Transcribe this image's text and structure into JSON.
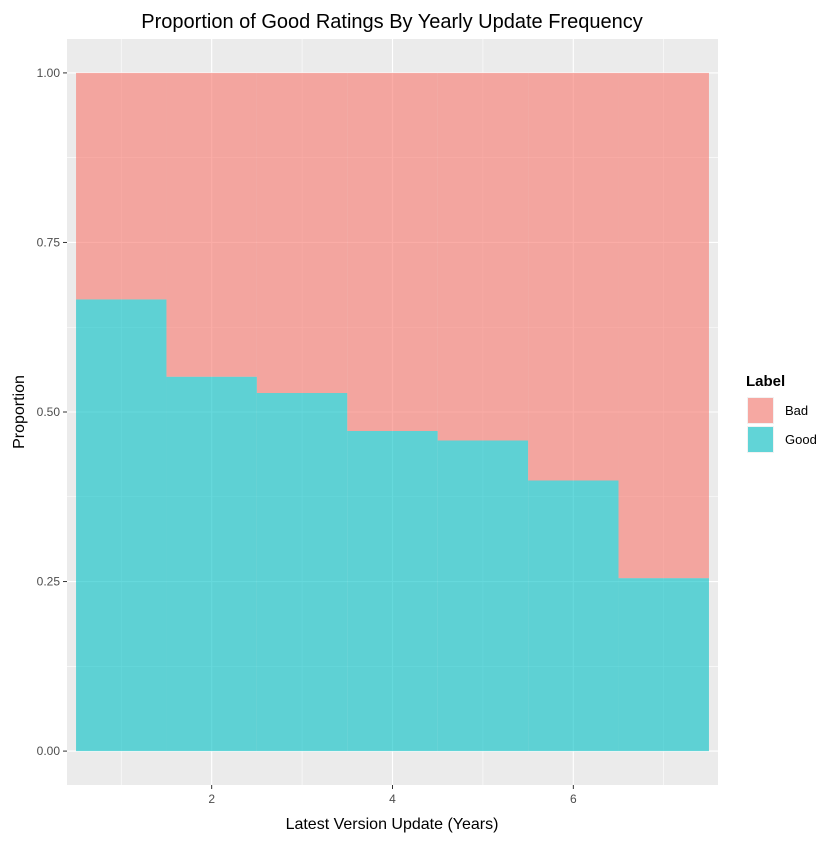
{
  "chart_data": {
    "type": "bar",
    "stacked": "fill",
    "title": "Proportion of Good Ratings By Yearly Update Frequency",
    "xlabel": "Latest Version Update (Years)",
    "ylabel": "Proportion",
    "x": [
      1,
      2,
      3,
      4,
      5,
      6,
      7
    ],
    "xlim": [
      0.4,
      7.6
    ],
    "ylim": [
      -0.05,
      1.05
    ],
    "x_ticks": [
      2,
      4,
      6
    ],
    "x_tick_labels": [
      "2",
      "4",
      "6"
    ],
    "y_ticks": [
      0,
      0.25,
      0.5,
      0.75,
      1.0
    ],
    "y_tick_labels": [
      "0.00",
      "0.25",
      "0.50",
      "0.75",
      "1.00"
    ],
    "series": [
      {
        "name": "Bad",
        "color": "#F8766D",
        "values": [
          0.334,
          0.448,
          0.472,
          0.528,
          0.542,
          0.601,
          0.745
        ]
      },
      {
        "name": "Good",
        "color": "#00BFC4",
        "values": [
          0.666,
          0.552,
          0.528,
          0.472,
          0.458,
          0.399,
          0.255
        ]
      }
    ],
    "legend": {
      "title": "Label",
      "position": "right",
      "entries": [
        "Bad",
        "Good"
      ]
    },
    "grid": true,
    "panel_color": "#EBEBEB"
  }
}
